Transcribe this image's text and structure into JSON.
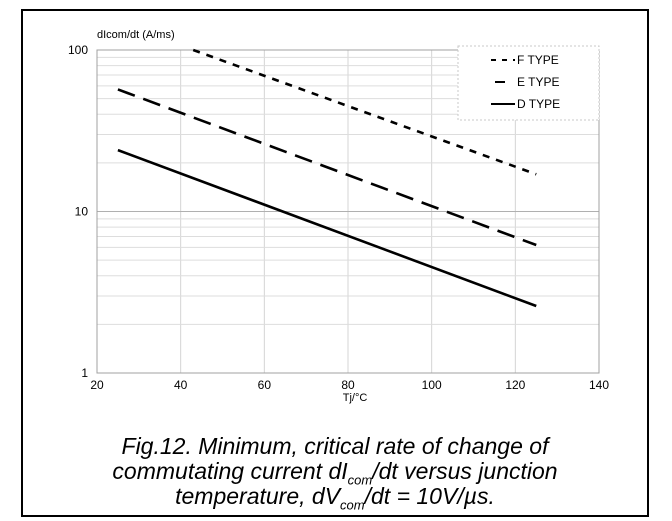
{
  "chart_data": {
    "type": "line",
    "ylabel": "dIcom/dt (A/ms)",
    "xlabel": "Tj/°C",
    "xlim": [
      20,
      140
    ],
    "ylim": [
      1,
      100
    ],
    "yscale": "log",
    "x_ticks": [
      "20",
      "40",
      "60",
      "80",
      "100",
      "120",
      "140"
    ],
    "y_ticks": [
      "1",
      "10",
      "100"
    ],
    "grid": true,
    "legend_position": "top-right",
    "series": [
      {
        "name": "F TYPE",
        "style": "short-dash",
        "x": [
          43,
          125
        ],
        "y": [
          100,
          17
        ]
      },
      {
        "name": "E TYPE",
        "style": "long-dash",
        "x": [
          25,
          125
        ],
        "y": [
          57,
          6.2
        ]
      },
      {
        "name": "D TYPE",
        "style": "solid",
        "x": [
          25,
          125
        ],
        "y": [
          24,
          2.6
        ]
      }
    ]
  },
  "caption": {
    "line1": "Fig.12.  Minimum, critical rate of change of",
    "line2_a": "commutating current dI",
    "line2_sub": "com",
    "line2_b": "/dt versus junction",
    "line3_a": "temperature, dV",
    "line3_sub": "com",
    "line3_b": "/dt = 10V/µs."
  }
}
